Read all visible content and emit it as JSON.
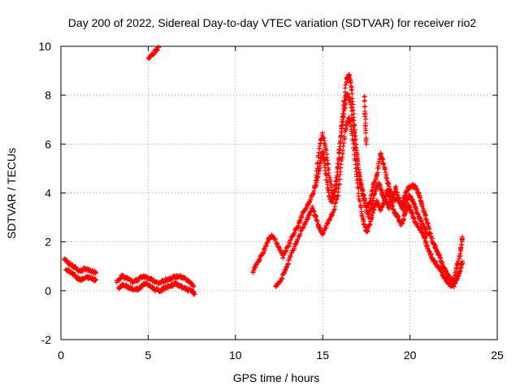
{
  "chart_data": {
    "type": "scatter",
    "title": "Day 200 of 2022, Sidereal Day-to-day VTEC variation (SDTVAR) for receiver rio2",
    "xlabel": "GPS time / hours",
    "ylabel": "SDTVAR / TECUs",
    "xlim": [
      0,
      25
    ],
    "ylim": [
      -2,
      10
    ],
    "x_ticks": [
      0,
      5,
      10,
      15,
      20,
      25
    ],
    "x_tick_labels": [
      "0",
      "5",
      "10",
      "15",
      "20",
      "25"
    ],
    "y_ticks": [
      -2,
      0,
      2,
      4,
      6,
      8,
      10
    ],
    "y_tick_labels": [
      "-2",
      "0",
      "2",
      "4",
      "6",
      "8",
      "10"
    ],
    "grid": true,
    "marker": "plus",
    "series": [
      {
        "name": "SDTVAR upper trace",
        "color": "#ff0000",
        "segments": [
          [
            [
              0.2,
              1.3
            ],
            [
              0.5,
              1.1
            ],
            [
              0.8,
              0.95
            ],
            [
              1.1,
              0.8
            ],
            [
              1.4,
              0.9
            ],
            [
              1.7,
              0.8
            ],
            [
              2.0,
              0.75
            ]
          ],
          [
            [
              3.2,
              0.4
            ],
            [
              3.5,
              0.6
            ],
            [
              3.8,
              0.5
            ],
            [
              4.1,
              0.35
            ],
            [
              4.4,
              0.45
            ],
            [
              4.7,
              0.6
            ],
            [
              5.0,
              0.55
            ],
            [
              5.3,
              0.4
            ],
            [
              5.6,
              0.3
            ],
            [
              5.9,
              0.4
            ],
            [
              6.2,
              0.5
            ],
            [
              6.5,
              0.55
            ],
            [
              6.8,
              0.6
            ],
            [
              7.1,
              0.5
            ],
            [
              7.4,
              0.35
            ],
            [
              7.6,
              0.2
            ]
          ],
          [
            [
              5.0,
              9.5
            ],
            [
              5.3,
              9.7
            ],
            [
              5.6,
              9.95
            ]
          ],
          [
            [
              11.0,
              0.8
            ],
            [
              11.3,
              1.2
            ],
            [
              11.6,
              1.6
            ],
            [
              11.9,
              2.1
            ],
            [
              12.1,
              2.3
            ],
            [
              12.4,
              1.9
            ],
            [
              12.7,
              1.4
            ],
            [
              13.0,
              1.8
            ],
            [
              13.3,
              2.3
            ],
            [
              13.6,
              2.7
            ],
            [
              13.9,
              3.2
            ],
            [
              14.2,
              3.6
            ],
            [
              14.5,
              4.1
            ],
            [
              14.7,
              4.6
            ],
            [
              14.85,
              5.2
            ],
            [
              15.0,
              5.7
            ],
            [
              15.1,
              5.3
            ],
            [
              15.25,
              4.4
            ],
            [
              15.45,
              3.6
            ],
            [
              15.7,
              3.9
            ],
            [
              15.9,
              5.2
            ],
            [
              16.05,
              6.5
            ],
            [
              16.2,
              7.5
            ],
            [
              16.35,
              8.6
            ],
            [
              16.5,
              8.85
            ],
            [
              16.65,
              8.3
            ],
            [
              16.8,
              7.0
            ],
            [
              16.95,
              5.6
            ],
            [
              17.1,
              4.6
            ],
            [
              17.3,
              4.0
            ],
            [
              17.5,
              3.4
            ],
            [
              17.7,
              3.6
            ],
            [
              17.9,
              4.3
            ],
            [
              18.1,
              4.7
            ],
            [
              18.3,
              5.6
            ],
            [
              18.5,
              5.2
            ],
            [
              18.7,
              4.5
            ],
            [
              18.9,
              4.0
            ],
            [
              19.1,
              3.7
            ],
            [
              19.3,
              3.8
            ],
            [
              19.5,
              3.5
            ],
            [
              19.7,
              3.9
            ],
            [
              19.9,
              4.2
            ],
            [
              20.1,
              4.3
            ],
            [
              20.3,
              4.25
            ],
            [
              20.5,
              4.0
            ],
            [
              20.7,
              3.5
            ],
            [
              20.9,
              3.0
            ],
            [
              21.1,
              2.5
            ],
            [
              21.3,
              2.0
            ],
            [
              21.5,
              1.7
            ],
            [
              21.7,
              1.4
            ],
            [
              21.9,
              1.0
            ],
            [
              22.1,
              0.7
            ],
            [
              22.3,
              0.5
            ],
            [
              22.5,
              0.4
            ],
            [
              22.7,
              1.0
            ],
            [
              22.9,
              1.6
            ],
            [
              23.0,
              2.2
            ]
          ]
        ]
      },
      {
        "name": "SDTVAR lower trace",
        "color": "#ff0000",
        "segments": [
          [
            [
              0.3,
              0.9
            ],
            [
              0.6,
              0.75
            ],
            [
              0.9,
              0.55
            ],
            [
              1.2,
              0.45
            ],
            [
              1.5,
              0.55
            ],
            [
              1.8,
              0.5
            ],
            [
              2.0,
              0.45
            ]
          ],
          [
            [
              3.3,
              0.1
            ],
            [
              3.6,
              0.25
            ],
            [
              3.9,
              0.15
            ],
            [
              4.2,
              0.05
            ],
            [
              4.5,
              0.1
            ],
            [
              4.8,
              0.3
            ],
            [
              5.1,
              0.2
            ],
            [
              5.4,
              0.05
            ],
            [
              5.7,
              0.0
            ],
            [
              6.0,
              0.15
            ],
            [
              6.3,
              0.2
            ],
            [
              6.6,
              0.3
            ],
            [
              6.9,
              0.15
            ],
            [
              7.2,
              0.05
            ],
            [
              7.5,
              0.0
            ],
            [
              7.65,
              -0.15
            ]
          ],
          [
            [
              12.3,
              0.2
            ],
            [
              12.6,
              0.4
            ],
            [
              12.9,
              0.9
            ],
            [
              13.2,
              1.5
            ],
            [
              13.5,
              2.0
            ],
            [
              13.8,
              2.5
            ],
            [
              14.1,
              2.9
            ],
            [
              14.4,
              3.4
            ],
            [
              14.6,
              3.0
            ],
            [
              14.8,
              2.6
            ],
            [
              15.0,
              2.3
            ],
            [
              15.3,
              2.8
            ],
            [
              15.6,
              3.2
            ],
            [
              15.9,
              4.0
            ],
            [
              16.1,
              5.4
            ],
            [
              16.3,
              6.6
            ],
            [
              16.5,
              7.1
            ],
            [
              16.7,
              6.4
            ],
            [
              16.9,
              5.0
            ],
            [
              17.1,
              3.8
            ],
            [
              17.3,
              2.9
            ],
            [
              17.5,
              2.4
            ],
            [
              17.7,
              2.7
            ],
            [
              17.9,
              3.3
            ],
            [
              18.1,
              3.7
            ],
            [
              18.3,
              3.3
            ],
            [
              18.5,
              3.6
            ],
            [
              18.7,
              4.1
            ],
            [
              18.9,
              3.6
            ],
            [
              19.1,
              3.2
            ],
            [
              19.3,
              3.0
            ],
            [
              19.5,
              2.7
            ],
            [
              19.7,
              3.1
            ],
            [
              19.9,
              3.5
            ],
            [
              20.1,
              3.2
            ],
            [
              20.3,
              2.8
            ],
            [
              20.5,
              2.6
            ],
            [
              20.7,
              2.4
            ],
            [
              20.9,
              2.0
            ],
            [
              21.1,
              1.6
            ],
            [
              21.3,
              1.3
            ],
            [
              21.5,
              1.1
            ],
            [
              21.7,
              0.9
            ],
            [
              21.9,
              0.6
            ],
            [
              22.1,
              0.4
            ],
            [
              22.3,
              0.25
            ],
            [
              22.5,
              0.2
            ],
            [
              22.7,
              0.5
            ],
            [
              22.9,
              0.9
            ],
            [
              23.0,
              1.2
            ]
          ]
        ]
      },
      {
        "name": "SDTVAR middle trace",
        "color": "#ff0000",
        "segments": [
          [
            [
              14.6,
              4.5
            ],
            [
              14.8,
              5.8
            ],
            [
              15.0,
              6.4
            ],
            [
              15.2,
              5.7
            ],
            [
              15.4,
              4.6
            ],
            [
              15.6,
              3.8
            ],
            [
              15.8,
              4.6
            ],
            [
              16.0,
              6.0
            ],
            [
              16.2,
              7.2
            ],
            [
              16.4,
              8.1
            ],
            [
              16.6,
              7.7
            ],
            [
              16.8,
              6.4
            ],
            [
              17.0,
              5.2
            ],
            [
              17.2,
              4.3
            ],
            [
              17.4,
              3.7
            ],
            [
              17.6,
              3.0
            ],
            [
              17.8,
              3.5
            ],
            [
              18.0,
              4.1
            ],
            [
              18.2,
              4.4
            ],
            [
              18.4,
              4.0
            ],
            [
              18.6,
              3.7
            ],
            [
              18.8,
              3.4
            ],
            [
              19.0,
              3.8
            ],
            [
              19.2,
              4.2
            ],
            [
              19.4,
              3.6
            ],
            [
              19.6,
              3.3
            ],
            [
              19.8,
              3.7
            ],
            [
              20.0,
              3.9
            ],
            [
              20.2,
              3.6
            ],
            [
              20.4,
              3.2
            ],
            [
              20.6,
              2.9
            ],
            [
              20.8,
              2.6
            ],
            [
              21.0,
              2.3
            ]
          ],
          [
            [
              17.4,
              8.0
            ],
            [
              17.45,
              7.0
            ],
            [
              17.5,
              6.0
            ]
          ]
        ]
      }
    ]
  }
}
